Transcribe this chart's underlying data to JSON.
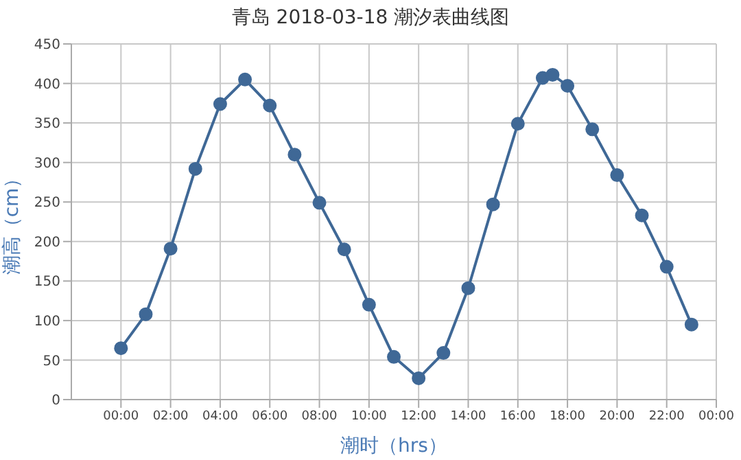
{
  "chart_data": {
    "type": "line",
    "title": "青岛 2018-03-18 潮汐表曲线图",
    "xlabel": "潮时（hrs）",
    "ylabel": "潮高（cm）",
    "x": [
      0,
      1,
      2,
      3,
      4,
      5,
      6,
      7,
      8,
      9,
      10,
      11,
      12,
      13,
      14,
      15,
      16,
      17,
      17.4,
      18,
      19,
      20,
      21,
      22,
      23
    ],
    "series": [
      {
        "color": "#3f6896",
        "values": [
          65,
          108,
          191,
          292,
          374,
          405,
          372,
          310,
          249,
          190,
          120,
          54,
          27,
          59,
          141,
          247,
          349,
          407,
          411,
          397,
          342,
          284,
          233,
          168,
          95
        ]
      }
    ],
    "xlim": [
      -2,
      24
    ],
    "xticks": [
      {
        "value": 0,
        "label": "00:00"
      },
      {
        "value": 2,
        "label": "02:00"
      },
      {
        "value": 4,
        "label": "04:00"
      },
      {
        "value": 6,
        "label": "06:00"
      },
      {
        "value": 8,
        "label": "08:00"
      },
      {
        "value": 10,
        "label": "10:00"
      },
      {
        "value": 12,
        "label": "12:00"
      },
      {
        "value": 14,
        "label": "14:00"
      },
      {
        "value": 16,
        "label": "16:00"
      },
      {
        "value": 18,
        "label": "18:00"
      },
      {
        "value": 20,
        "label": "20:00"
      },
      {
        "value": 22,
        "label": "22:00"
      },
      {
        "value": 24,
        "label": "00:00"
      }
    ],
    "ylim": [
      0,
      450
    ],
    "yticks": [
      0,
      50,
      100,
      150,
      200,
      250,
      300,
      350,
      400,
      450
    ],
    "grid": true,
    "legend": false,
    "marker": "circle",
    "line_style": "solid"
  }
}
